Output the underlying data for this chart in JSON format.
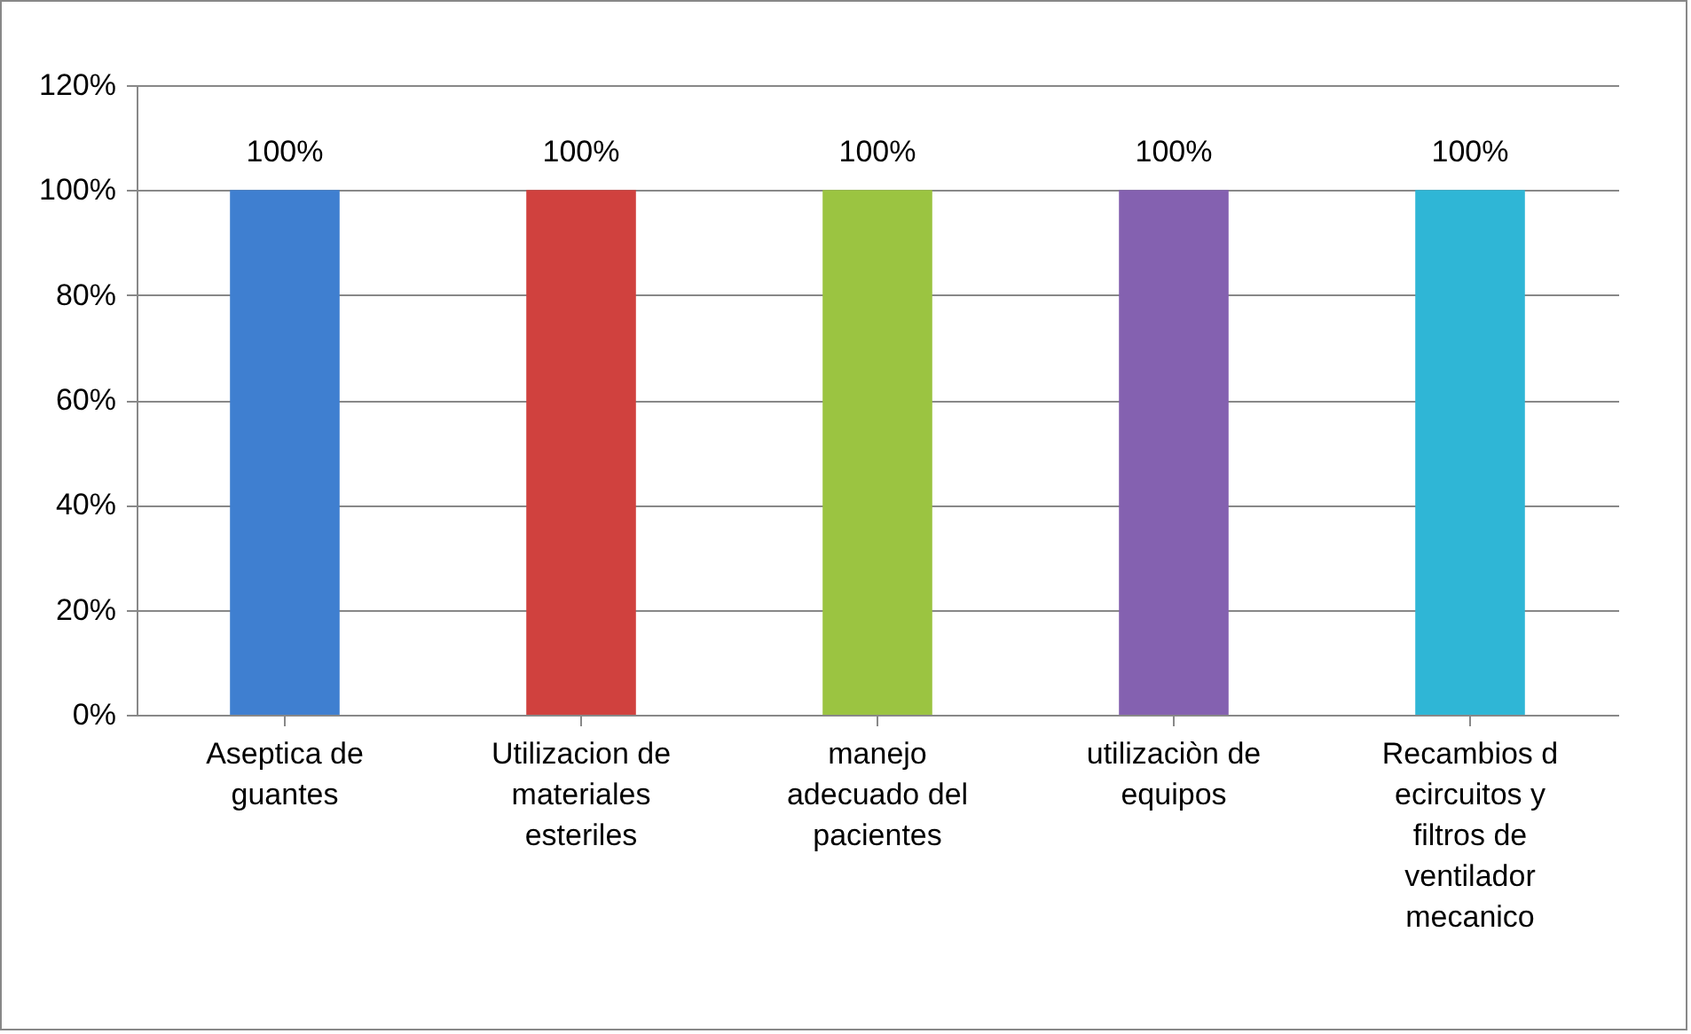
{
  "chart_data": {
    "type": "bar",
    "categories": [
      "Aseptica de guantes",
      "Utilizacion de materiales esteriles",
      "manejo adecuado del pacientes",
      "utilizaciòn de equipos",
      "Recambios d ecircuitos y filtros de ventilador mecanico"
    ],
    "values": [
      100,
      100,
      100,
      100,
      100
    ],
    "colors": [
      "#3f7fd0",
      "#d0413e",
      "#9bc441",
      "#8461b0",
      "#2fb6d6"
    ],
    "value_labels": [
      "100%",
      "100%",
      "100%",
      "100%",
      "100%"
    ],
    "ylim": [
      0,
      120
    ],
    "yticks": [
      {
        "value": 0,
        "label": "0%"
      },
      {
        "value": 20,
        "label": "20%"
      },
      {
        "value": 40,
        "label": "40%"
      },
      {
        "value": 60,
        "label": "60%"
      },
      {
        "value": 80,
        "label": "80%"
      },
      {
        "value": 100,
        "label": "100%"
      },
      {
        "value": 120,
        "label": "120%"
      }
    ],
    "grid": "y"
  }
}
